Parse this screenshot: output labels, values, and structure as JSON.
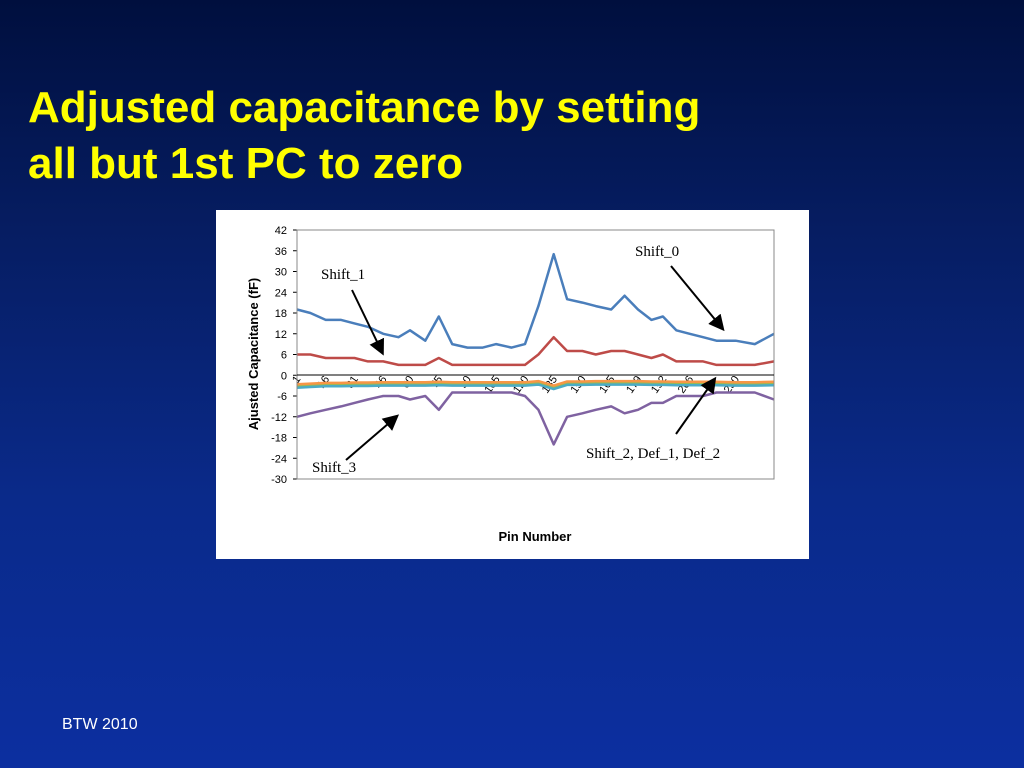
{
  "slide": {
    "title_line1": "Adjusted capacitance by setting",
    "title_line2": "all but 1st PC to zero",
    "footer": "BTW 2010"
  },
  "colors": {
    "title": "#ffff00",
    "footer": "#ffffff",
    "background_top": "#000f3e",
    "background_bottom": "#0c2fa0"
  },
  "chart_data": {
    "type": "line",
    "title": "",
    "xlabel": "Pin Number",
    "ylabel": "Ajusted Capacitance  (fF)",
    "ylim": [
      -30,
      42
    ],
    "xlim": [
      1,
      250
    ],
    "yticks": [
      "42",
      "36",
      "30",
      "24",
      "18",
      "12",
      "6",
      "0",
      "-6",
      "-12",
      "-18",
      "-24",
      "-30"
    ],
    "xticks": [
      "1",
      "16",
      "31",
      "46",
      "60",
      "75",
      "90",
      "105",
      "120",
      "135",
      "150",
      "165",
      "179",
      "192",
      "206",
      "230"
    ],
    "grid": false,
    "legend": "none",
    "annotations": [
      {
        "text": "Shift_0",
        "points_to": "upper series near pin 215"
      },
      {
        "text": "Shift_1",
        "points_to": "second series near pin 45"
      },
      {
        "text": "Shift_3",
        "points_to": "lowest series near pin 45"
      },
      {
        "text": "Shift_2, Def_1, Def_2",
        "points_to": "near-zero cluster near pin 200"
      }
    ],
    "x": [
      1,
      8,
      16,
      24,
      31,
      38,
      46,
      54,
      60,
      68,
      75,
      82,
      90,
      98,
      105,
      113,
      120,
      127,
      135,
      142,
      150,
      157,
      165,
      172,
      179,
      186,
      192,
      199,
      206,
      213,
      220,
      230,
      240,
      250
    ],
    "series": [
      {
        "color": "#4a7ebb",
        "values": [
          19,
          18,
          16,
          16,
          15,
          14,
          12,
          11,
          13,
          10,
          17,
          9,
          8,
          8,
          9,
          8,
          9,
          20,
          35,
          22,
          21,
          20,
          19,
          23,
          19,
          16,
          17,
          13,
          12,
          11,
          10,
          10,
          9,
          12
        ]
      },
      {
        "color": "#be4b48",
        "values": [
          6,
          6,
          5,
          5,
          5,
          4,
          4,
          3,
          3,
          3,
          5,
          3,
          3,
          3,
          3,
          3,
          3,
          6,
          11,
          7,
          7,
          6,
          7,
          7,
          6,
          5,
          6,
          4,
          4,
          4,
          3,
          3,
          3,
          4
        ]
      },
      {
        "color": "#98b954",
        "values": [
          -3.2,
          -3,
          -2.8,
          -2.8,
          -2.7,
          -2.7,
          -2.6,
          -2.6,
          -2.6,
          -2.6,
          -2.5,
          -2.6,
          -2.6,
          -2.6,
          -2.6,
          -2.6,
          -2.6,
          -2.3,
          -3.5,
          -2.4,
          -2.4,
          -2.3,
          -2.3,
          -2.3,
          -2.3,
          -2.4,
          -2.4,
          -2.5,
          -2.5,
          -2.5,
          -2.5,
          -2.6,
          -2.6,
          -2.5
        ]
      },
      {
        "color": "#f79646",
        "values": [
          -2.6,
          -2.4,
          -2.2,
          -2.2,
          -2.1,
          -2.1,
          -2.0,
          -2.0,
          -2.0,
          -2.0,
          -1.9,
          -2.0,
          -2.0,
          -2.0,
          -2.0,
          -2.0,
          -2.0,
          -1.7,
          -3.0,
          -1.8,
          -1.8,
          -1.7,
          -1.7,
          -1.7,
          -1.7,
          -1.8,
          -1.8,
          -1.9,
          -1.9,
          -1.9,
          -1.9,
          -2.0,
          -2.0,
          -1.9
        ]
      },
      {
        "color": "#4bacc6",
        "values": [
          -3.6,
          -3.4,
          -3.2,
          -3.2,
          -3.1,
          -3.1,
          -3.0,
          -3.0,
          -3.0,
          -3.0,
          -2.9,
          -3.0,
          -3.0,
          -3.0,
          -3.0,
          -3.0,
          -3.0,
          -2.7,
          -4.0,
          -2.8,
          -2.8,
          -2.7,
          -2.7,
          -2.7,
          -2.7,
          -2.8,
          -2.8,
          -2.9,
          -2.9,
          -2.9,
          -2.9,
          -3.0,
          -3.0,
          -2.9
        ]
      },
      {
        "color": "#7f62a1",
        "values": [
          -12,
          -11,
          -10,
          -9,
          -8,
          -7,
          -6,
          -6,
          -7,
          -6,
          -10,
          -5,
          -5,
          -5,
          -5,
          -5,
          -6,
          -10,
          -20,
          -12,
          -11,
          -10,
          -9,
          -11,
          -10,
          -8,
          -8,
          -6,
          -6,
          -6,
          -5,
          -5,
          -5,
          -7
        ]
      }
    ]
  }
}
